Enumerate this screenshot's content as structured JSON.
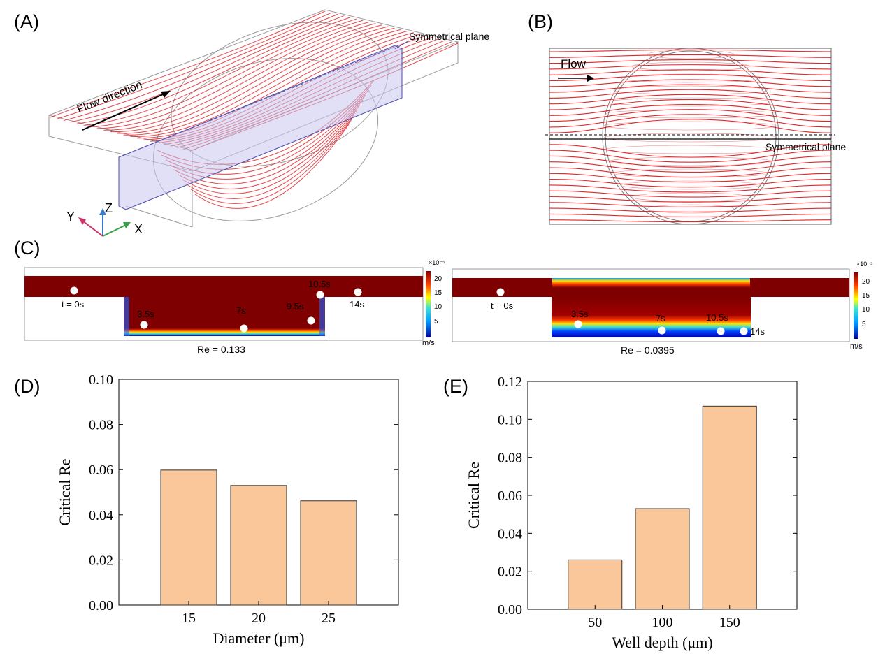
{
  "panels": {
    "a": {
      "label": "(A)",
      "sym_plane": "Symmetrical plane",
      "flow_direction": "Flow direction",
      "axes": {
        "x": "X",
        "y": "Y",
        "z": "Z"
      }
    },
    "b": {
      "label": "(B)",
      "flow": "Flow",
      "sym_plane": "Symmetrical plane"
    },
    "c": {
      "label": "(C)",
      "left": {
        "re": "Re = 0.133",
        "times": [
          "t = 0s",
          "3.5s",
          "7s",
          "9.5s",
          "10.5s",
          "14s"
        ]
      },
      "right": {
        "re": "Re = 0.0395",
        "times": [
          "t = 0s",
          "3.5s",
          "7s",
          "10.5s",
          "14s"
        ]
      },
      "colorbar": {
        "exponent": "×10⁻⁵",
        "ticks": [
          "20",
          "15",
          "10",
          "5"
        ],
        "unit": "m/s"
      }
    },
    "d": {
      "label": "(D)"
    },
    "e": {
      "label": "(E)"
    }
  },
  "colors": {
    "bar_fill": "#f9c79a",
    "streamline": "#e3262d",
    "field": "#7f0000"
  },
  "chart_data": [
    {
      "type": "bar",
      "panel": "D",
      "categories": [
        "15",
        "20",
        "25"
      ],
      "values": [
        0.0598,
        0.053,
        0.0462
      ],
      "xlabel": "Diameter (μm)",
      "ylabel": "Critical Re",
      "ylim": [
        0,
        0.1
      ],
      "yticks": [
        "0.00",
        "0.02",
        "0.04",
        "0.06",
        "0.08",
        "0.10"
      ],
      "grid": false
    },
    {
      "type": "bar",
      "panel": "E",
      "categories": [
        "50",
        "100",
        "150"
      ],
      "values": [
        0.026,
        0.053,
        0.107
      ],
      "xlabel": "Well depth (μm)",
      "ylabel": "Critical Re",
      "ylim": [
        0,
        0.12
      ],
      "yticks": [
        "0.00",
        "0.02",
        "0.04",
        "0.06",
        "0.08",
        "0.10",
        "0.12"
      ],
      "grid": false
    }
  ]
}
